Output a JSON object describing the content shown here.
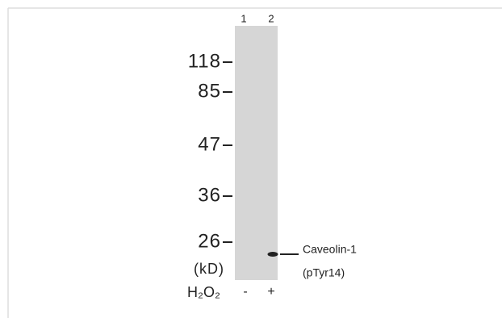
{
  "lanes": [
    "1",
    "2"
  ],
  "markers": {
    "values": [
      118,
      85,
      47,
      36,
      26
    ],
    "unit": "(kD)"
  },
  "band": {
    "label": "Caveolin-1",
    "sublabel": "(pTyr14)"
  },
  "treatment": {
    "name": "H₂O₂",
    "lanes": [
      "-",
      "+"
    ]
  }
}
